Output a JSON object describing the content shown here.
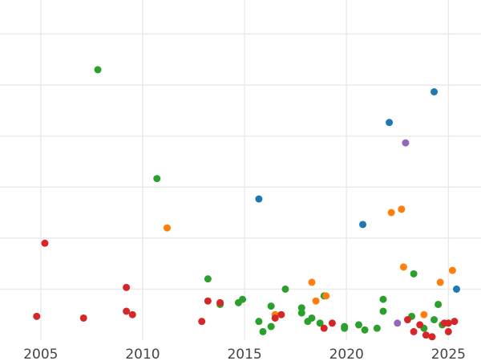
{
  "chart_data": {
    "type": "scatter",
    "title": "",
    "xlabel": "",
    "ylabel": "",
    "xlim": [
      2003.0,
      2026.6
    ],
    "ylim": [
      0,
      100
    ],
    "x_ticks": [
      2005,
      2010,
      2015,
      2020,
      2025
    ],
    "x_tick_labels": [
      "2005",
      "2010",
      "2015",
      "2020",
      "2025"
    ],
    "y_gridlines": [
      15,
      30,
      45,
      60,
      75,
      90
    ],
    "grid": true,
    "background": "#ffffff",
    "grid_color": "#ebebeb",
    "series": [
      {
        "color": "#2ca02c",
        "points": [
          [
            2007.8,
            79.5
          ],
          [
            2010.7,
            47.5
          ],
          [
            2013.2,
            18.0
          ],
          [
            2013.8,
            10.5
          ],
          [
            2014.7,
            11.0
          ],
          [
            2014.9,
            12.0
          ],
          [
            2015.7,
            5.5
          ],
          [
            2015.9,
            2.5
          ],
          [
            2016.3,
            10.0
          ],
          [
            2016.3,
            4.0
          ],
          [
            2017.0,
            15.0
          ],
          [
            2017.8,
            9.5
          ],
          [
            2017.8,
            8.0
          ],
          [
            2018.1,
            5.5
          ],
          [
            2018.3,
            6.5
          ],
          [
            2018.7,
            5.0
          ],
          [
            2018.9,
            13.0
          ],
          [
            2019.9,
            4.0
          ],
          [
            2019.9,
            3.5
          ],
          [
            2020.6,
            4.5
          ],
          [
            2020.9,
            3.0
          ],
          [
            2021.5,
            3.5
          ],
          [
            2021.8,
            12.0
          ],
          [
            2021.8,
            8.5
          ],
          [
            2023.2,
            7.0
          ],
          [
            2023.3,
            19.5
          ],
          [
            2023.8,
            3.5
          ],
          [
            2024.3,
            6.0
          ],
          [
            2024.5,
            10.5
          ],
          [
            2024.7,
            4.5
          ]
        ]
      },
      {
        "color": "#1f77b4",
        "points": [
          [
            2015.7,
            41.5
          ],
          [
            2020.8,
            34.0
          ],
          [
            2022.1,
            64.0
          ],
          [
            2024.3,
            73.0
          ],
          [
            2025.4,
            15.0
          ]
        ]
      },
      {
        "color": "#ff7f0e",
        "points": [
          [
            2011.2,
            33.0
          ],
          [
            2016.5,
            7.5
          ],
          [
            2018.3,
            17.0
          ],
          [
            2018.5,
            11.5
          ],
          [
            2019.0,
            13.0
          ],
          [
            2022.2,
            37.5
          ],
          [
            2022.7,
            38.5
          ],
          [
            2022.8,
            21.5
          ],
          [
            2023.8,
            7.5
          ],
          [
            2024.6,
            17.0
          ],
          [
            2025.2,
            20.5
          ]
        ]
      },
      {
        "color": "#d62728",
        "points": [
          [
            2004.8,
            7.0
          ],
          [
            2005.2,
            28.5
          ],
          [
            2007.1,
            6.5
          ],
          [
            2009.2,
            15.5
          ],
          [
            2009.2,
            8.5
          ],
          [
            2009.5,
            7.5
          ],
          [
            2012.9,
            5.5
          ],
          [
            2013.2,
            11.5
          ],
          [
            2013.8,
            11.0
          ],
          [
            2016.5,
            6.5
          ],
          [
            2016.8,
            7.5
          ],
          [
            2018.9,
            3.5
          ],
          [
            2019.3,
            5.0
          ],
          [
            2023.0,
            6.0
          ],
          [
            2023.3,
            2.5
          ],
          [
            2023.6,
            4.5
          ],
          [
            2023.9,
            1.5
          ],
          [
            2024.2,
            1.0
          ],
          [
            2024.8,
            5.0
          ],
          [
            2025.0,
            2.5
          ],
          [
            2025.0,
            5.0
          ],
          [
            2025.3,
            5.5
          ]
        ]
      },
      {
        "color": "#9467bd",
        "points": [
          [
            2022.9,
            58.0
          ],
          [
            2022.5,
            5.0
          ]
        ]
      }
    ]
  }
}
